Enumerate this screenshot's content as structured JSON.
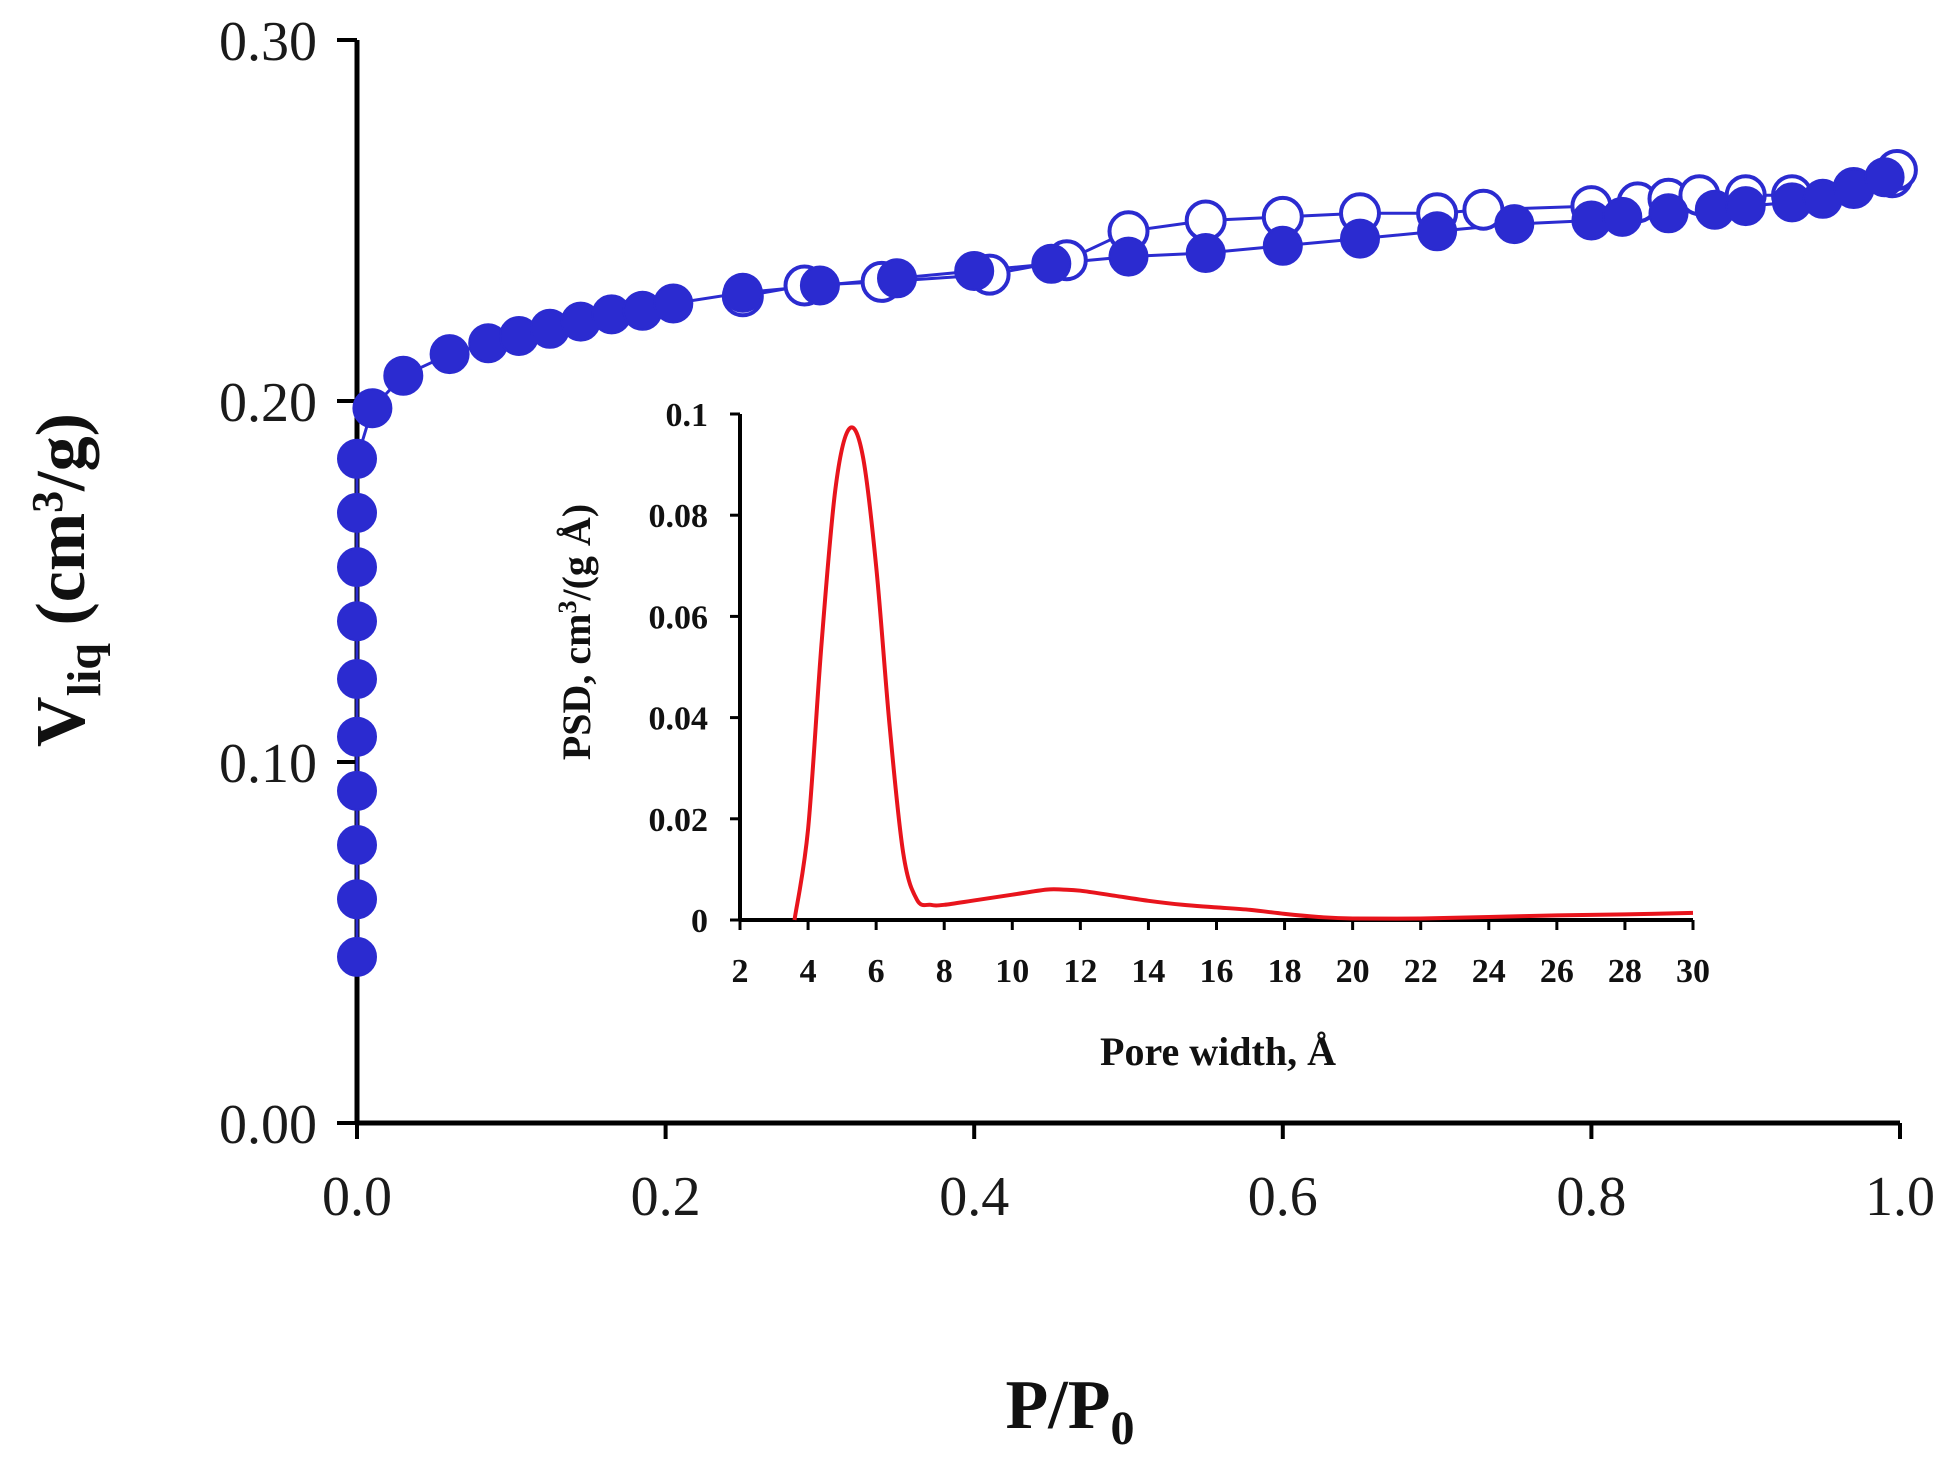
{
  "colors": {
    "series": "#2b2bd0",
    "psd": "#e8141c",
    "axis": "#000000"
  },
  "chart_data": [
    {
      "type": "scatter",
      "name": "main-isotherm",
      "title": "",
      "xlabel": {
        "main": "P/P",
        "sub": "0"
      },
      "ylabel": {
        "main": "V",
        "sub": "liq",
        "mid": " (cm",
        "sup": "3",
        "end": "/g)"
      },
      "xlim": [
        0,
        1
      ],
      "ylim": [
        0,
        0.3
      ],
      "xticks": [
        "0.0",
        "0.2",
        "0.4",
        "0.6",
        "0.8",
        "1.0"
      ],
      "yticks": [
        "0.00",
        "0.10",
        "0.20",
        "0.30"
      ],
      "series": [
        {
          "name": "adsorption",
          "marker": "filled-circle",
          "x": [
            0.0,
            0.0,
            0.0,
            0.0,
            0.0,
            0.0,
            0.0,
            0.0,
            0.0,
            0.0,
            0.01,
            0.03,
            0.06,
            0.085,
            0.105,
            0.125,
            0.145,
            0.165,
            0.185,
            0.205,
            0.25,
            0.3,
            0.35,
            0.4,
            0.45,
            0.5,
            0.55,
            0.6,
            0.65,
            0.7,
            0.75,
            0.8,
            0.82,
            0.85,
            0.88,
            0.9,
            0.93,
            0.95,
            0.97,
            0.99
          ],
          "y": [
            0.046,
            0.062,
            0.077,
            0.092,
            0.107,
            0.123,
            0.139,
            0.154,
            0.169,
            0.184,
            0.198,
            0.207,
            0.213,
            0.216,
            0.218,
            0.22,
            0.222,
            0.224,
            0.225,
            0.227,
            0.23,
            0.232,
            0.234,
            0.236,
            0.238,
            0.24,
            0.241,
            0.243,
            0.245,
            0.247,
            0.249,
            0.25,
            0.251,
            0.252,
            0.253,
            0.254,
            0.255,
            0.256,
            0.259,
            0.262
          ]
        },
        {
          "name": "desorption",
          "marker": "open-circle",
          "x": [
            0.25,
            0.29,
            0.34,
            0.41,
            0.46,
            0.5,
            0.55,
            0.6,
            0.65,
            0.7,
            0.73,
            0.8,
            0.83,
            0.85,
            0.87,
            0.9,
            0.93,
            0.97,
            0.995,
            0.998
          ],
          "y": [
            0.229,
            0.232,
            0.233,
            0.235,
            0.239,
            0.247,
            0.25,
            0.251,
            0.252,
            0.252,
            0.253,
            0.254,
            0.255,
            0.256,
            0.257,
            0.257,
            0.257,
            0.259,
            0.262,
            0.264
          ]
        }
      ]
    },
    {
      "type": "line",
      "name": "inset-psd",
      "title": "",
      "xlabel": "Pore width, Å",
      "ylabel": {
        "main": "PSD, cm",
        "sup": "3",
        "end": "/(g Å)"
      },
      "xlim": [
        2,
        30
      ],
      "ylim": [
        0,
        0.1
      ],
      "xticks": [
        "2",
        "4",
        "6",
        "8",
        "10",
        "12",
        "14",
        "16",
        "18",
        "20",
        "22",
        "24",
        "26",
        "28",
        "30"
      ],
      "yticks": [
        "0",
        "0.02",
        "0.04",
        "0.06",
        "0.08",
        "0.1"
      ],
      "series": [
        {
          "name": "PSD",
          "x": [
            3.6,
            4.0,
            4.4,
            4.8,
            5.2,
            5.6,
            6.0,
            6.4,
            6.8,
            7.2,
            7.6,
            8.0,
            9.0,
            10.0,
            11.0,
            11.5,
            12.0,
            13.0,
            14.0,
            15.0,
            16.0,
            17.0,
            18.0,
            19.0,
            20.0,
            22.0,
            24.0,
            26.0,
            28.0,
            30.0
          ],
          "y": [
            0.0,
            0.018,
            0.055,
            0.085,
            0.097,
            0.092,
            0.07,
            0.038,
            0.013,
            0.004,
            0.003,
            0.003,
            0.004,
            0.005,
            0.006,
            0.006,
            0.0058,
            0.0048,
            0.0038,
            0.003,
            0.0025,
            0.002,
            0.0012,
            0.0006,
            0.0003,
            0.0003,
            0.0006,
            0.0009,
            0.0011,
            0.0014
          ]
        }
      ]
    }
  ]
}
